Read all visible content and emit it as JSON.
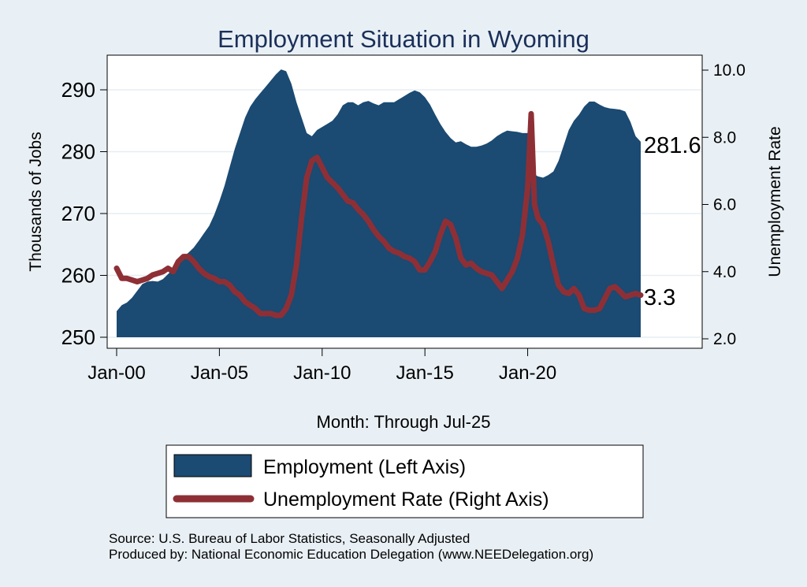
{
  "chart_data": {
    "type": "area+line",
    "title": "Employment Situation in Wyoming",
    "xlabel": "Month: Through Jul-25",
    "ylabel_left": "Thousands of Jobs",
    "ylabel_right": "Unemployment Rate",
    "x_ticks": [
      {
        "label": "Jan-00",
        "year": 2000
      },
      {
        "label": "Jan-05",
        "year": 2005
      },
      {
        "label": "Jan-10",
        "year": 2010
      },
      {
        "label": "Jan-15",
        "year": 2015
      },
      {
        "label": "Jan-20",
        "year": 2020
      }
    ],
    "xlim": [
      2000,
      2025.5
    ],
    "y_left": {
      "ticks": [
        "250",
        "260",
        "270",
        "280",
        "290"
      ],
      "lim": [
        250,
        293
      ]
    },
    "y_right": {
      "ticks": [
        "2.0",
        "4.0",
        "6.0",
        "8.0",
        "10.0"
      ],
      "lim": [
        2.0,
        10.0
      ]
    },
    "series": [
      {
        "name": "Employment (Left Axis)",
        "kind": "area",
        "axis": "left",
        "color": "#1b4a72",
        "points": [
          [
            2000.0,
            254.2
          ],
          [
            2000.25,
            255.2
          ],
          [
            2000.5,
            255.6
          ],
          [
            2000.75,
            256.4
          ],
          [
            2001.0,
            257.5
          ],
          [
            2001.25,
            258.6
          ],
          [
            2001.5,
            259.0
          ],
          [
            2001.75,
            259.1
          ],
          [
            2002.0,
            259.0
          ],
          [
            2002.25,
            259.4
          ],
          [
            2002.5,
            260.2
          ],
          [
            2002.75,
            261.0
          ],
          [
            2003.0,
            262.0
          ],
          [
            2003.25,
            263.0
          ],
          [
            2003.5,
            263.7
          ],
          [
            2003.75,
            264.5
          ],
          [
            2004.0,
            265.6
          ],
          [
            2004.25,
            266.8
          ],
          [
            2004.5,
            268.0
          ],
          [
            2004.75,
            269.8
          ],
          [
            2005.0,
            272.0
          ],
          [
            2005.25,
            274.5
          ],
          [
            2005.5,
            277.5
          ],
          [
            2005.75,
            280.5
          ],
          [
            2006.0,
            283.0
          ],
          [
            2006.25,
            285.5
          ],
          [
            2006.5,
            287.3
          ],
          [
            2006.75,
            288.5
          ],
          [
            2007.0,
            289.5
          ],
          [
            2007.25,
            290.5
          ],
          [
            2007.5,
            291.5
          ],
          [
            2007.75,
            292.5
          ],
          [
            2008.0,
            293.3
          ],
          [
            2008.25,
            293.0
          ],
          [
            2008.5,
            291.0
          ],
          [
            2008.75,
            288.0
          ],
          [
            2009.0,
            285.5
          ],
          [
            2009.25,
            283.0
          ],
          [
            2009.5,
            282.5
          ],
          [
            2009.75,
            283.5
          ],
          [
            2010.0,
            284.0
          ],
          [
            2010.25,
            284.5
          ],
          [
            2010.5,
            285.0
          ],
          [
            2010.75,
            286.0
          ],
          [
            2011.0,
            287.5
          ],
          [
            2011.25,
            288.0
          ],
          [
            2011.5,
            288.0
          ],
          [
            2011.75,
            287.5
          ],
          [
            2012.0,
            288.0
          ],
          [
            2012.25,
            288.2
          ],
          [
            2012.5,
            287.8
          ],
          [
            2012.75,
            287.5
          ],
          [
            2013.0,
            288.0
          ],
          [
            2013.25,
            288.0
          ],
          [
            2013.5,
            288.0
          ],
          [
            2013.75,
            288.5
          ],
          [
            2014.0,
            289.0
          ],
          [
            2014.25,
            289.5
          ],
          [
            2014.5,
            289.9
          ],
          [
            2014.75,
            289.6
          ],
          [
            2015.0,
            288.8
          ],
          [
            2015.25,
            287.6
          ],
          [
            2015.5,
            286.0
          ],
          [
            2015.75,
            284.5
          ],
          [
            2016.0,
            283.2
          ],
          [
            2016.25,
            282.2
          ],
          [
            2016.5,
            281.5
          ],
          [
            2016.75,
            281.7
          ],
          [
            2017.0,
            281.2
          ],
          [
            2017.25,
            280.8
          ],
          [
            2017.5,
            280.8
          ],
          [
            2017.75,
            281.0
          ],
          [
            2018.0,
            281.3
          ],
          [
            2018.25,
            281.8
          ],
          [
            2018.5,
            282.5
          ],
          [
            2018.75,
            283.0
          ],
          [
            2019.0,
            283.4
          ],
          [
            2019.25,
            283.3
          ],
          [
            2019.5,
            283.2
          ],
          [
            2019.75,
            283.0
          ],
          [
            2020.0,
            283.0
          ],
          [
            2020.17,
            282.0
          ],
          [
            2020.25,
            276.5
          ],
          [
            2020.5,
            276.0
          ],
          [
            2020.75,
            275.8
          ],
          [
            2021.0,
            276.2
          ],
          [
            2021.25,
            276.8
          ],
          [
            2021.5,
            278.5
          ],
          [
            2021.75,
            281.0
          ],
          [
            2022.0,
            283.5
          ],
          [
            2022.25,
            285.0
          ],
          [
            2022.5,
            286.0
          ],
          [
            2022.75,
            287.3
          ],
          [
            2023.0,
            288.1
          ],
          [
            2023.25,
            288.1
          ],
          [
            2023.5,
            287.6
          ],
          [
            2023.75,
            287.2
          ],
          [
            2024.0,
            287.0
          ],
          [
            2024.25,
            286.9
          ],
          [
            2024.5,
            286.8
          ],
          [
            2024.75,
            286.5
          ],
          [
            2025.0,
            284.8
          ],
          [
            2025.25,
            282.5
          ],
          [
            2025.5,
            281.6
          ]
        ]
      },
      {
        "name": "Unemployment Rate (Right Axis)",
        "kind": "line",
        "axis": "right",
        "color": "#8e2f36",
        "points": [
          [
            2000.0,
            4.1
          ],
          [
            2000.25,
            3.8
          ],
          [
            2000.5,
            3.8
          ],
          [
            2000.75,
            3.75
          ],
          [
            2001.0,
            3.7
          ],
          [
            2001.25,
            3.75
          ],
          [
            2001.5,
            3.8
          ],
          [
            2001.75,
            3.9
          ],
          [
            2002.0,
            3.95
          ],
          [
            2002.25,
            4.0
          ],
          [
            2002.5,
            4.1
          ],
          [
            2002.75,
            4.0
          ],
          [
            2003.0,
            4.3
          ],
          [
            2003.25,
            4.45
          ],
          [
            2003.5,
            4.45
          ],
          [
            2003.75,
            4.3
          ],
          [
            2004.0,
            4.1
          ],
          [
            2004.25,
            3.95
          ],
          [
            2004.5,
            3.85
          ],
          [
            2004.75,
            3.8
          ],
          [
            2005.0,
            3.7
          ],
          [
            2005.25,
            3.7
          ],
          [
            2005.5,
            3.6
          ],
          [
            2005.75,
            3.4
          ],
          [
            2006.0,
            3.3
          ],
          [
            2006.25,
            3.1
          ],
          [
            2006.5,
            3.0
          ],
          [
            2006.75,
            2.9
          ],
          [
            2007.0,
            2.75
          ],
          [
            2007.25,
            2.75
          ],
          [
            2007.5,
            2.75
          ],
          [
            2007.75,
            2.7
          ],
          [
            2008.0,
            2.7
          ],
          [
            2008.25,
            2.9
          ],
          [
            2008.5,
            3.3
          ],
          [
            2008.75,
            4.2
          ],
          [
            2009.0,
            5.6
          ],
          [
            2009.25,
            6.8
          ],
          [
            2009.5,
            7.3
          ],
          [
            2009.75,
            7.4
          ],
          [
            2010.0,
            7.1
          ],
          [
            2010.25,
            6.8
          ],
          [
            2010.5,
            6.65
          ],
          [
            2010.75,
            6.5
          ],
          [
            2011.0,
            6.3
          ],
          [
            2011.25,
            6.1
          ],
          [
            2011.5,
            6.05
          ],
          [
            2011.75,
            5.85
          ],
          [
            2012.0,
            5.7
          ],
          [
            2012.25,
            5.5
          ],
          [
            2012.5,
            5.25
          ],
          [
            2012.75,
            5.05
          ],
          [
            2013.0,
            4.9
          ],
          [
            2013.25,
            4.7
          ],
          [
            2013.5,
            4.6
          ],
          [
            2013.75,
            4.55
          ],
          [
            2014.0,
            4.45
          ],
          [
            2014.25,
            4.4
          ],
          [
            2014.5,
            4.3
          ],
          [
            2014.75,
            4.05
          ],
          [
            2015.0,
            4.05
          ],
          [
            2015.25,
            4.3
          ],
          [
            2015.5,
            4.6
          ],
          [
            2015.75,
            5.1
          ],
          [
            2016.0,
            5.5
          ],
          [
            2016.25,
            5.4
          ],
          [
            2016.5,
            5.0
          ],
          [
            2016.75,
            4.4
          ],
          [
            2017.0,
            4.2
          ],
          [
            2017.25,
            4.25
          ],
          [
            2017.5,
            4.1
          ],
          [
            2017.75,
            4.0
          ],
          [
            2018.0,
            3.95
          ],
          [
            2018.25,
            3.9
          ],
          [
            2018.5,
            3.7
          ],
          [
            2018.75,
            3.5
          ],
          [
            2019.0,
            3.75
          ],
          [
            2019.25,
            4.0
          ],
          [
            2019.5,
            4.4
          ],
          [
            2019.75,
            5.1
          ],
          [
            2020.0,
            6.5
          ],
          [
            2020.17,
            8.7
          ],
          [
            2020.33,
            6.0
          ],
          [
            2020.5,
            5.6
          ],
          [
            2020.75,
            5.4
          ],
          [
            2021.0,
            4.9
          ],
          [
            2021.25,
            4.2
          ],
          [
            2021.5,
            3.6
          ],
          [
            2021.75,
            3.4
          ],
          [
            2022.0,
            3.35
          ],
          [
            2022.25,
            3.5
          ],
          [
            2022.5,
            3.3
          ],
          [
            2022.75,
            2.9
          ],
          [
            2023.0,
            2.85
          ],
          [
            2023.25,
            2.85
          ],
          [
            2023.5,
            2.9
          ],
          [
            2023.75,
            3.2
          ],
          [
            2024.0,
            3.5
          ],
          [
            2024.25,
            3.55
          ],
          [
            2024.5,
            3.4
          ],
          [
            2024.75,
            3.25
          ],
          [
            2025.0,
            3.3
          ],
          [
            2025.25,
            3.35
          ],
          [
            2025.5,
            3.3
          ]
        ]
      }
    ],
    "end_labels": {
      "employment": "281.6",
      "unemployment": "3.3"
    },
    "legend": {
      "placement": "bottom",
      "items": [
        "Employment (Left Axis)",
        "Unemployment Rate (Right Axis)"
      ]
    }
  },
  "notes": {
    "source": "Source: U.S. Bureau of Labor Statistics, Seasonally Adjusted",
    "produced": "Produced by: National Economic Education Delegation (www.NEEDelegation.org)"
  },
  "colors": {
    "background": "#e9f0f5",
    "plot_background": "#ffffff",
    "title": "#1a2f5a",
    "area": "#1b4a72",
    "line": "#8e2f36"
  }
}
